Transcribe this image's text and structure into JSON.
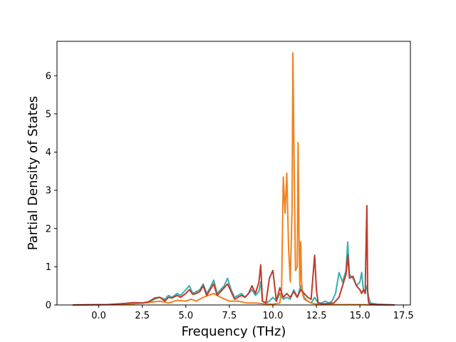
{
  "chart_data": {
    "type": "line",
    "title": "",
    "xlabel": "Frequency (THz)",
    "ylabel": "Partial Density of States",
    "xlim": [
      -2.4,
      17.9
    ],
    "ylim": [
      0,
      6.9
    ],
    "xticks": [
      0.0,
      2.5,
      5.0,
      7.5,
      10.0,
      12.5,
      15.0,
      17.5
    ],
    "xtick_labels": [
      "0.0",
      "2.5",
      "5.0",
      "7.5",
      "10.0",
      "12.5",
      "15.0",
      "17.5"
    ],
    "yticks": [
      0,
      1,
      2,
      3,
      4,
      5,
      6
    ],
    "ytick_labels": [
      "0",
      "1",
      "2",
      "3",
      "4",
      "5",
      "6"
    ],
    "grid": false,
    "legend": "none",
    "series": [
      {
        "color": "#3aafb0",
        "x": [
          -1.5,
          0.5,
          1.5,
          2.0,
          2.5,
          2.8,
          3.0,
          3.2,
          3.5,
          3.8,
          4.0,
          4.2,
          4.5,
          4.7,
          5.0,
          5.2,
          5.4,
          5.6,
          5.8,
          6.0,
          6.2,
          6.4,
          6.6,
          6.8,
          7.0,
          7.2,
          7.4,
          7.6,
          7.8,
          8.0,
          8.2,
          8.4,
          8.6,
          8.8,
          9.0,
          9.2,
          9.3,
          9.4,
          9.6,
          9.8,
          10.0,
          10.2,
          10.4,
          10.6,
          10.8,
          11.0,
          11.2,
          11.4,
          11.6,
          11.8,
          12.0,
          12.2,
          12.4,
          12.6,
          12.8,
          13.0,
          13.2,
          13.4,
          13.6,
          13.8,
          14.0,
          14.2,
          14.3,
          14.4,
          14.6,
          14.8,
          15.0,
          15.1,
          15.2,
          15.3,
          15.4,
          15.5,
          15.6,
          16.0,
          17.0
        ],
        "y": [
          0,
          0.01,
          0.03,
          0.05,
          0.05,
          0.08,
          0.1,
          0.15,
          0.2,
          0.15,
          0.25,
          0.2,
          0.3,
          0.25,
          0.4,
          0.5,
          0.3,
          0.35,
          0.4,
          0.55,
          0.3,
          0.45,
          0.65,
          0.3,
          0.4,
          0.5,
          0.7,
          0.4,
          0.2,
          0.25,
          0.3,
          0.2,
          0.3,
          0.4,
          0.25,
          0.35,
          0.6,
          0.1,
          0.05,
          0.1,
          0.2,
          0.1,
          0.3,
          0.15,
          0.2,
          0.15,
          0.4,
          0.2,
          0.5,
          0.2,
          0.1,
          0.05,
          0.2,
          0.05,
          0.05,
          0.1,
          0.05,
          0.1,
          0.3,
          0.85,
          0.6,
          0.9,
          1.65,
          0.8,
          0.7,
          0.5,
          0.6,
          0.85,
          0.4,
          0.3,
          0.5,
          0.2,
          0.05,
          0.02,
          0
        ]
      },
      {
        "color": "#f0821e",
        "x": [
          -1.5,
          1.0,
          2.0,
          2.5,
          3.0,
          3.5,
          4.0,
          4.5,
          5.0,
          5.3,
          5.6,
          6.0,
          6.3,
          6.6,
          7.0,
          7.5,
          8.0,
          8.5,
          9.0,
          9.5,
          10.0,
          10.4,
          10.5,
          10.6,
          10.7,
          10.8,
          10.9,
          11.0,
          11.1,
          11.15,
          11.2,
          11.3,
          11.4,
          11.45,
          11.5,
          11.55,
          11.6,
          11.65,
          11.7,
          11.8,
          12.0,
          12.2,
          12.4,
          12.6,
          13.0,
          14.0,
          15.0,
          16.0,
          17.0
        ],
        "y": [
          0,
          0.01,
          0.03,
          0.05,
          0.07,
          0.1,
          0.05,
          0.12,
          0.1,
          0.15,
          0.1,
          0.2,
          0.25,
          0.3,
          0.2,
          0.1,
          0.1,
          0.05,
          0.05,
          0.03,
          0.02,
          0.05,
          0.4,
          3.35,
          2.4,
          3.45,
          1.5,
          0.6,
          2.5,
          6.6,
          4.5,
          0.9,
          1.0,
          4.25,
          2.0,
          0.5,
          1.65,
          0.6,
          0.3,
          0.15,
          0.1,
          0.05,
          0.03,
          0.02,
          0.01,
          0.01,
          0.01,
          0.0,
          0
        ]
      },
      {
        "color": "#c0392b",
        "x": [
          -1.5,
          0.5,
          1.5,
          2.0,
          2.5,
          2.8,
          3.0,
          3.2,
          3.5,
          3.8,
          4.0,
          4.2,
          4.5,
          4.7,
          5.0,
          5.2,
          5.4,
          5.6,
          5.8,
          6.0,
          6.2,
          6.4,
          6.6,
          6.8,
          7.0,
          7.2,
          7.4,
          7.6,
          7.8,
          8.0,
          8.2,
          8.4,
          8.6,
          8.8,
          9.0,
          9.2,
          9.3,
          9.4,
          9.6,
          9.8,
          10.0,
          10.2,
          10.4,
          10.6,
          10.8,
          11.0,
          11.2,
          11.4,
          11.6,
          11.8,
          12.0,
          12.2,
          12.4,
          12.5,
          12.6,
          12.8,
          13.0,
          13.5,
          13.8,
          14.0,
          14.2,
          14.3,
          14.4,
          14.6,
          14.8,
          15.0,
          15.1,
          15.2,
          15.3,
          15.35,
          15.4,
          15.45,
          15.5,
          15.6,
          16.0,
          17.0
        ],
        "y": [
          0,
          0.01,
          0.04,
          0.06,
          0.05,
          0.07,
          0.12,
          0.18,
          0.2,
          0.1,
          0.2,
          0.18,
          0.25,
          0.2,
          0.3,
          0.4,
          0.28,
          0.3,
          0.35,
          0.5,
          0.25,
          0.4,
          0.55,
          0.25,
          0.35,
          0.45,
          0.55,
          0.35,
          0.15,
          0.2,
          0.25,
          0.2,
          0.3,
          0.5,
          0.3,
          0.6,
          1.05,
          0.1,
          0.05,
          0.7,
          0.9,
          0.1,
          0.45,
          0.2,
          0.3,
          0.2,
          0.35,
          0.2,
          0.4,
          0.3,
          0.2,
          0.15,
          1.3,
          0.4,
          0.05,
          0.03,
          0.03,
          0.05,
          0.2,
          0.5,
          0.8,
          1.3,
          0.7,
          0.75,
          0.5,
          0.4,
          0.3,
          0.4,
          0.3,
          1.5,
          2.6,
          0.3,
          0.05,
          0.02,
          0.01,
          0
        ]
      }
    ]
  }
}
